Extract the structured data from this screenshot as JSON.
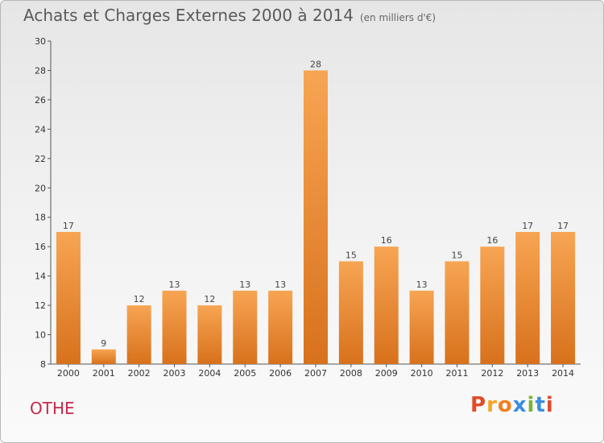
{
  "header": {
    "title": "Achats et Charges Externes 2000 à 2014",
    "unit": "(en milliers d'€)"
  },
  "footer": {
    "location": "OTHE",
    "brand": "Proxiti",
    "brand_colors": [
      "#e04b2a",
      "#f5a623",
      "#f08020",
      "#3a8ee0",
      "#7ab531",
      "#3a8ee0",
      "#e04b2a"
    ]
  },
  "chart_data": {
    "type": "bar",
    "categories": [
      "2000",
      "2001",
      "2002",
      "2003",
      "2004",
      "2005",
      "2006",
      "2007",
      "2008",
      "2009",
      "2010",
      "2011",
      "2012",
      "2013",
      "2014"
    ],
    "values": [
      17,
      9,
      12,
      13,
      12,
      13,
      13,
      28,
      15,
      16,
      13,
      15,
      16,
      17,
      17
    ],
    "ylim": [
      8,
      30
    ],
    "yticks": [
      8,
      10,
      12,
      14,
      16,
      18,
      20,
      22,
      24,
      26,
      28,
      30
    ],
    "grid": false,
    "bar_color_top": "#f7a553",
    "bar_color_bottom": "#d8711c"
  }
}
